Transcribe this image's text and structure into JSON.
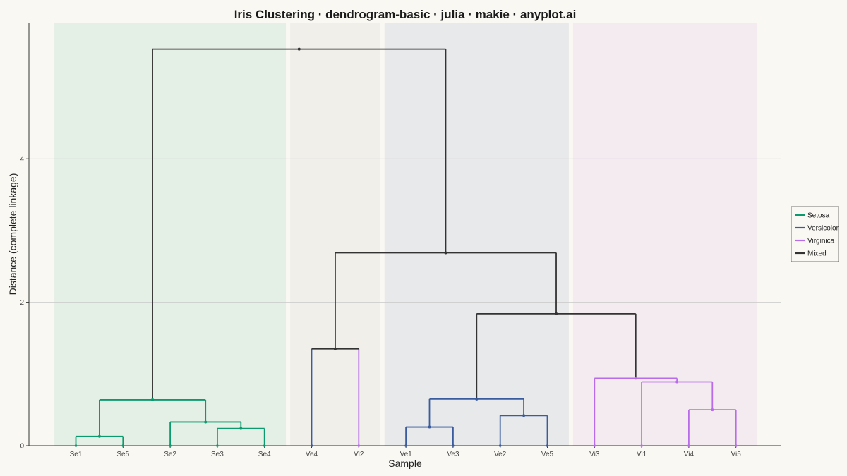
{
  "chart_data": {
    "type": "dendrogram",
    "title": "Iris Clustering · dendrogram-basic · julia · makie · anyplot.ai",
    "xlabel": "Sample",
    "ylabel": "Distance (complete linkage)",
    "ylim": [
      0,
      5.9
    ],
    "yticks": [
      0,
      2,
      4
    ],
    "grid": true,
    "legend_position": "right",
    "leaves": [
      "Se1",
      "Se5",
      "Se2",
      "Se3",
      "Se4",
      "Ve4",
      "Vi2",
      "Ve1",
      "Ve3",
      "Ve2",
      "Ve5",
      "Vi3",
      "Vi1",
      "Vi4",
      "Vi5"
    ],
    "colors": {
      "Setosa": "#0A9A6E",
      "Versicolor": "#3A5B9E",
      "Virginica": "#B86CEA",
      "Mixed": "#333333"
    },
    "legend": [
      "Setosa",
      "Versicolor",
      "Virginica",
      "Mixed"
    ],
    "bands": [
      {
        "group": "Setosa",
        "from": 0,
        "to": 4,
        "color": "#0A9A6E"
      },
      {
        "group": "Mixed",
        "from": 5,
        "to": 6,
        "color": "#999999"
      },
      {
        "group": "Versicolor",
        "from": 7,
        "to": 10,
        "color": "#3A5B9E"
      },
      {
        "group": "Virginica",
        "from": 11,
        "to": 14,
        "color": "#B86CEA"
      }
    ],
    "merges": [
      {
        "id": "m0",
        "left": "Se1",
        "right": "Se5",
        "height": 0.13,
        "group": "Setosa"
      },
      {
        "id": "m1",
        "left": "Se3",
        "right": "Se4",
        "height": 0.24,
        "group": "Setosa"
      },
      {
        "id": "m2",
        "left": "Se2",
        "right": "m1",
        "height": 0.33,
        "group": "Setosa"
      },
      {
        "id": "m3",
        "left": "m0",
        "right": "m2",
        "height": 0.64,
        "group": "Setosa"
      },
      {
        "id": "m4",
        "left": "Ve4",
        "right": "Vi2",
        "height": 1.35,
        "group": "Mixed"
      },
      {
        "id": "m5",
        "left": "Ve1",
        "right": "Ve3",
        "height": 0.26,
        "group": "Versicolor"
      },
      {
        "id": "m6",
        "left": "Ve2",
        "right": "Ve5",
        "height": 0.42,
        "group": "Versicolor"
      },
      {
        "id": "m7",
        "left": "m5",
        "right": "m6",
        "height": 0.65,
        "group": "Versicolor"
      },
      {
        "id": "m8",
        "left": "Vi4",
        "right": "Vi5",
        "height": 0.5,
        "group": "Virginica"
      },
      {
        "id": "m9",
        "left": "Vi1",
        "right": "m8",
        "height": 0.89,
        "group": "Virginica"
      },
      {
        "id": "m10",
        "left": "Vi3",
        "right": "m9",
        "height": 0.94,
        "group": "Virginica"
      },
      {
        "id": "m11",
        "left": "m7",
        "right": "m10",
        "height": 1.84,
        "group": "Mixed"
      },
      {
        "id": "m12",
        "left": "m4",
        "right": "m11",
        "height": 2.69,
        "group": "Mixed"
      },
      {
        "id": "m13",
        "left": "m3",
        "right": "m12",
        "height": 5.53,
        "group": "Mixed"
      }
    ]
  }
}
